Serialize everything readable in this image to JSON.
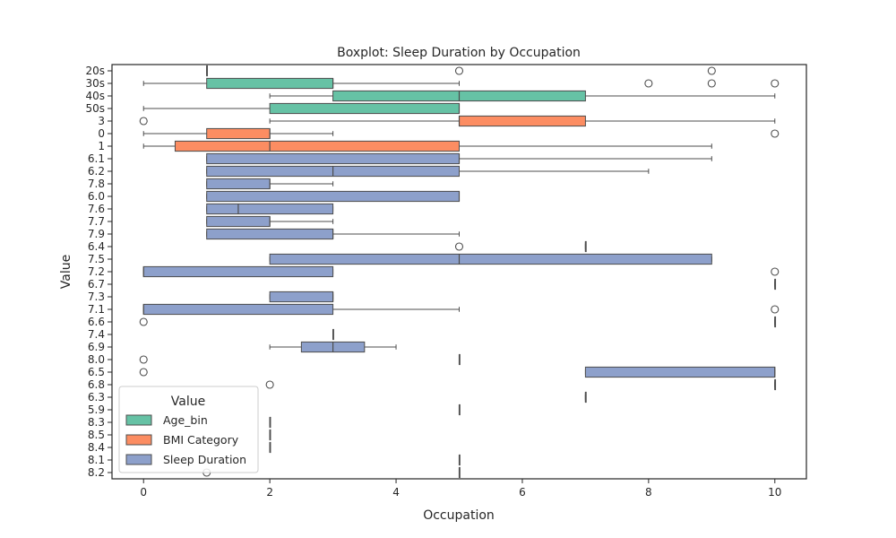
{
  "chart_data": {
    "type": "boxplot",
    "orientation": "horizontal",
    "title": "Boxplot: Sleep Duration by Occupation",
    "xlabel": "Occupation",
    "ylabel": "Value",
    "xlim": [
      -0.5,
      10.5
    ],
    "xticks": [
      0,
      2,
      4,
      6,
      8,
      10
    ],
    "grid": false,
    "legend": {
      "title": "Value",
      "placement": "lower-left",
      "entries": [
        {
          "label": "Age_bin",
          "color": "#66c2a5"
        },
        {
          "label": "BMI Category",
          "color": "#fc8d62"
        },
        {
          "label": "Sleep Duration",
          "color": "#8da0cb"
        }
      ]
    },
    "categories": [
      "20s",
      "30s",
      "40s",
      "50s",
      "3",
      "0",
      "1",
      "6.1",
      "6.2",
      "7.8",
      "6.0",
      "7.6",
      "7.7",
      "7.9",
      "6.4",
      "7.5",
      "7.2",
      "6.7",
      "7.3",
      "7.1",
      "6.6",
      "7.4",
      "6.9",
      "8.0",
      "6.5",
      "6.8",
      "6.3",
      "5.9",
      "8.3",
      "8.5",
      "8.4",
      "8.1",
      "8.2"
    ],
    "boxes": [
      {
        "category": "20s",
        "group": "Age_bin",
        "whislo": 1,
        "q1": 1,
        "med": 1,
        "q3": 1,
        "whishi": 1,
        "fliers": [
          5,
          9
        ]
      },
      {
        "category": "30s",
        "group": "Age_bin",
        "whislo": 0,
        "q1": 1,
        "med": 3,
        "q3": 3,
        "whishi": 5,
        "fliers": [
          8,
          9,
          10
        ]
      },
      {
        "category": "40s",
        "group": "Age_bin",
        "whislo": 2,
        "q1": 3,
        "med": 5,
        "q3": 7,
        "whishi": 10,
        "fliers": []
      },
      {
        "category": "50s",
        "group": "Age_bin",
        "whislo": 0,
        "q1": 2,
        "med": 5,
        "q3": 5,
        "whishi": 5,
        "fliers": []
      },
      {
        "category": "3",
        "group": "BMI Category",
        "whislo": 2,
        "q1": 5,
        "med": 5,
        "q3": 7,
        "whishi": 10,
        "fliers": [
          0
        ]
      },
      {
        "category": "0",
        "group": "BMI Category",
        "whislo": 0,
        "q1": 1,
        "med": 2,
        "q3": 2,
        "whishi": 3,
        "fliers": [
          10
        ]
      },
      {
        "category": "1",
        "group": "BMI Category",
        "whislo": 0,
        "q1": 0.5,
        "med": 2,
        "q3": 5,
        "whishi": 9,
        "fliers": []
      },
      {
        "category": "6.1",
        "group": "Sleep Duration",
        "whislo": 1,
        "q1": 1,
        "med": 5,
        "q3": 5,
        "whishi": 9,
        "fliers": []
      },
      {
        "category": "6.2",
        "group": "Sleep Duration",
        "whislo": 1,
        "q1": 1,
        "med": 3,
        "q3": 5,
        "whishi": 8,
        "fliers": []
      },
      {
        "category": "7.8",
        "group": "Sleep Duration",
        "whislo": 1,
        "q1": 1,
        "med": 2,
        "q3": 2,
        "whishi": 3,
        "fliers": []
      },
      {
        "category": "6.0",
        "group": "Sleep Duration",
        "whislo": 1,
        "q1": 1,
        "med": 5,
        "q3": 5,
        "whishi": 5,
        "fliers": []
      },
      {
        "category": "7.6",
        "group": "Sleep Duration",
        "whislo": 1,
        "q1": 1,
        "med": 1.5,
        "q3": 3,
        "whishi": 3,
        "fliers": []
      },
      {
        "category": "7.7",
        "group": "Sleep Duration",
        "whislo": 1,
        "q1": 1,
        "med": 2,
        "q3": 2,
        "whishi": 3,
        "fliers": []
      },
      {
        "category": "7.9",
        "group": "Sleep Duration",
        "whislo": 1,
        "q1": 1,
        "med": 3,
        "q3": 3,
        "whishi": 5,
        "fliers": []
      },
      {
        "category": "6.4",
        "group": "Sleep Duration",
        "whislo": 7,
        "q1": 7,
        "med": 7,
        "q3": 7,
        "whishi": 7,
        "fliers": [
          5
        ]
      },
      {
        "category": "7.5",
        "group": "Sleep Duration",
        "whislo": 2,
        "q1": 2,
        "med": 5,
        "q3": 9,
        "whishi": 9,
        "fliers": []
      },
      {
        "category": "7.2",
        "group": "Sleep Duration",
        "whislo": 0,
        "q1": 0,
        "med": 0,
        "q3": 3,
        "whishi": 3,
        "fliers": [
          10
        ]
      },
      {
        "category": "6.7",
        "group": "Sleep Duration",
        "whislo": 10,
        "q1": 10,
        "med": 10,
        "q3": 10,
        "whishi": 10,
        "fliers": []
      },
      {
        "category": "7.3",
        "group": "Sleep Duration",
        "whislo": 2,
        "q1": 2,
        "med": 3,
        "q3": 3,
        "whishi": 3,
        "fliers": []
      },
      {
        "category": "7.1",
        "group": "Sleep Duration",
        "whislo": 0,
        "q1": 0,
        "med": 0,
        "q3": 3,
        "whishi": 5,
        "fliers": [
          10
        ]
      },
      {
        "category": "6.6",
        "group": "Sleep Duration",
        "whislo": 10,
        "q1": 10,
        "med": 10,
        "q3": 10,
        "whishi": 10,
        "fliers": [
          0
        ]
      },
      {
        "category": "7.4",
        "group": "Sleep Duration",
        "whislo": 3,
        "q1": 3,
        "med": 3,
        "q3": 3,
        "whishi": 3,
        "fliers": []
      },
      {
        "category": "6.9",
        "group": "Sleep Duration",
        "whislo": 2,
        "q1": 2.5,
        "med": 3,
        "q3": 3.5,
        "whishi": 4,
        "fliers": []
      },
      {
        "category": "8.0",
        "group": "Sleep Duration",
        "whislo": 5,
        "q1": 5,
        "med": 5,
        "q3": 5,
        "whishi": 5,
        "fliers": [
          0
        ]
      },
      {
        "category": "6.5",
        "group": "Sleep Duration",
        "whislo": 7,
        "q1": 7,
        "med": 10,
        "q3": 10,
        "whishi": 10,
        "fliers": [
          0
        ]
      },
      {
        "category": "6.8",
        "group": "Sleep Duration",
        "whislo": 10,
        "q1": 10,
        "med": 10,
        "q3": 10,
        "whishi": 10,
        "fliers": [
          2
        ]
      },
      {
        "category": "6.3",
        "group": "Sleep Duration",
        "whislo": 7,
        "q1": 7,
        "med": 7,
        "q3": 7,
        "whishi": 7,
        "fliers": []
      },
      {
        "category": "5.9",
        "group": "Sleep Duration",
        "whislo": 5,
        "q1": 5,
        "med": 5,
        "q3": 5,
        "whishi": 5,
        "fliers": []
      },
      {
        "category": "8.3",
        "group": "Sleep Duration",
        "whislo": 2,
        "q1": 2,
        "med": 2,
        "q3": 2,
        "whishi": 2,
        "fliers": []
      },
      {
        "category": "8.5",
        "group": "Sleep Duration",
        "whislo": 2,
        "q1": 2,
        "med": 2,
        "q3": 2,
        "whishi": 2,
        "fliers": []
      },
      {
        "category": "8.4",
        "group": "Sleep Duration",
        "whislo": 2,
        "q1": 2,
        "med": 2,
        "q3": 2,
        "whishi": 2,
        "fliers": []
      },
      {
        "category": "8.1",
        "group": "Sleep Duration",
        "whislo": 5,
        "q1": 5,
        "med": 5,
        "q3": 5,
        "whishi": 5,
        "fliers": []
      },
      {
        "category": "8.2",
        "group": "Sleep Duration",
        "whislo": 5,
        "q1": 5,
        "med": 5,
        "q3": 5,
        "whishi": 5,
        "fliers": [
          1
        ]
      }
    ]
  }
}
